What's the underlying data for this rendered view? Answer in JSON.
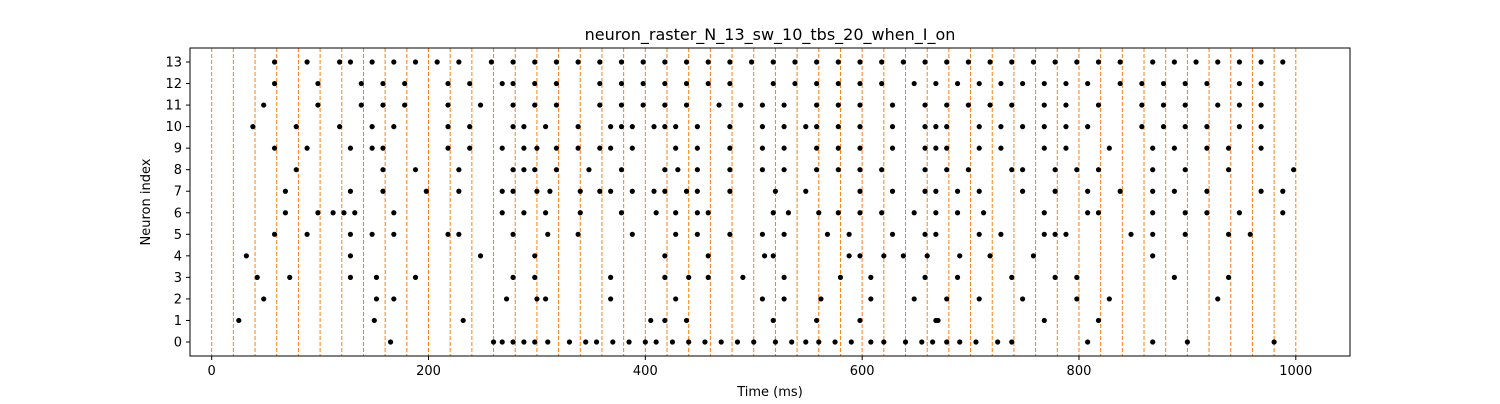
{
  "chart_data": {
    "type": "scatter",
    "title": "neuron_raster_N_13_sw_10_tbs_20_when_I_on",
    "xlabel": "Time (ms)",
    "ylabel": "Neuron index",
    "xlim": [
      -20,
      1050
    ],
    "ylim": [
      -0.65,
      13.65
    ],
    "x_ticks": [
      0,
      200,
      400,
      600,
      800,
      1000
    ],
    "x_tick_labels": [
      "0",
      "200",
      "400",
      "600",
      "800",
      "1000"
    ],
    "y_ticks": [
      0,
      1,
      2,
      3,
      4,
      5,
      6,
      7,
      8,
      9,
      10,
      11,
      12,
      13
    ],
    "y_tick_labels": [
      "0",
      "1",
      "2",
      "3",
      "4",
      "5",
      "6",
      "7",
      "8",
      "9",
      "10",
      "11",
      "12",
      "13"
    ],
    "grid": false,
    "time_bin_lines": {
      "x": [
        0,
        20,
        40,
        60,
        80,
        100,
        120,
        140,
        160,
        180,
        200,
        220,
        240,
        260,
        280,
        300,
        320,
        340,
        360,
        380,
        400,
        420,
        440,
        460,
        480,
        500,
        520,
        540,
        560,
        580,
        600,
        620,
        640,
        660,
        680,
        700,
        720,
        740,
        760,
        780,
        800,
        820,
        840,
        860,
        880,
        900,
        920,
        940,
        960,
        980,
        1000
      ],
      "color": "#ff7f0e",
      "style": "dashed"
    },
    "marker_color": "#000000",
    "spikes": [
      {
        "neuron": 0,
        "times": [
          165,
          260,
          268,
          278,
          288,
          298,
          310,
          330,
          345,
          355,
          370,
          385,
          400,
          410,
          425,
          440,
          455,
          470,
          485,
          500,
          520,
          535,
          548,
          560,
          575,
          590,
          608,
          620,
          640,
          655,
          665,
          678,
          690,
          705,
          725,
          738,
          808,
          868,
          900,
          980
        ]
      },
      {
        "neuron": 1,
        "times": [
          25,
          150,
          232,
          405,
          418,
          438,
          518,
          558,
          598,
          668,
          670,
          768,
          818
        ]
      },
      {
        "neuron": 2,
        "times": [
          48,
          152,
          168,
          272,
          300,
          308,
          368,
          428,
          508,
          528,
          562,
          608,
          648,
          678,
          708,
          748,
          798,
          828,
          928
        ]
      },
      {
        "neuron": 3,
        "times": [
          42,
          72,
          128,
          152,
          188,
          278,
          298,
          368,
          418,
          440,
          458,
          490,
          528,
          580,
          608,
          658,
          688,
          738,
          778,
          798,
          888,
          938
        ]
      },
      {
        "neuron": 4,
        "times": [
          32,
          128,
          248,
          298,
          418,
          458,
          510,
          518,
          588,
          598,
          620,
          638,
          660,
          690,
          718,
          758,
          868
        ]
      },
      {
        "neuron": 5,
        "times": [
          58,
          88,
          128,
          148,
          168,
          218,
          228,
          278,
          310,
          338,
          388,
          428,
          448,
          478,
          508,
          528,
          568,
          588,
          628,
          658,
          668,
          708,
          728,
          768,
          778,
          788,
          848,
          868,
          898,
          938,
          958
        ]
      },
      {
        "neuron": 6,
        "times": [
          68,
          98,
          112,
          122,
          132,
          168,
          268,
          288,
          308,
          340,
          378,
          410,
          428,
          448,
          458,
          518,
          532,
          560,
          578,
          598,
          618,
          648,
          668,
          688,
          712,
          768,
          808,
          818,
          868,
          898,
          918,
          948,
          988
        ]
      },
      {
        "neuron": 7,
        "times": [
          68,
          128,
          158,
          198,
          228,
          268,
          278,
          300,
          312,
          340,
          358,
          368,
          388,
          408,
          418,
          438,
          448,
          478,
          520,
          548,
          598,
          628,
          658,
          668,
          688,
          708,
          748,
          778,
          808,
          838,
          868,
          888,
          918,
          968,
          988
        ]
      },
      {
        "neuron": 8,
        "times": [
          78,
          158,
          188,
          228,
          278,
          288,
          298,
          318,
          348,
          378,
          418,
          430,
          448,
          478,
          508,
          528,
          558,
          578,
          598,
          618,
          658,
          678,
          698,
          738,
          748,
          778,
          798,
          818,
          868,
          898,
          938,
          998
        ]
      },
      {
        "neuron": 9,
        "times": [
          58,
          88,
          128,
          148,
          158,
          218,
          238,
          268,
          288,
          300,
          318,
          338,
          358,
          368,
          388,
          428,
          448,
          478,
          508,
          528,
          558,
          578,
          598,
          628,
          658,
          668,
          678,
          708,
          728,
          768,
          788,
          828,
          868,
          888,
          918,
          938,
          968
        ]
      },
      {
        "neuron": 10,
        "times": [
          38,
          78,
          118,
          148,
          168,
          218,
          238,
          278,
          288,
          308,
          338,
          368,
          378,
          388,
          408,
          418,
          428,
          448,
          478,
          508,
          528,
          548,
          558,
          578,
          598,
          628,
          658,
          668,
          678,
          708,
          728,
          748,
          768,
          788,
          808,
          858,
          878,
          898,
          918,
          948,
          968
        ]
      },
      {
        "neuron": 11,
        "times": [
          48,
          98,
          138,
          158,
          178,
          218,
          248,
          278,
          298,
          318,
          358,
          378,
          398,
          418,
          438,
          468,
          488,
          508,
          528,
          558,
          578,
          598,
          628,
          658,
          678,
          698,
          718,
          738,
          768,
          788,
          818,
          858,
          878,
          898,
          928,
          948,
          968
        ]
      },
      {
        "neuron": 12,
        "times": [
          58,
          98,
          138,
          158,
          178,
          218,
          238,
          268,
          278,
          298,
          318,
          358,
          378,
          398,
          418,
          438,
          458,
          478,
          518,
          538,
          558,
          578,
          598,
          618,
          648,
          668,
          688,
          708,
          728,
          748,
          768,
          788,
          808,
          838,
          858,
          878,
          898,
          918,
          948,
          968
        ]
      },
      {
        "neuron": 13,
        "times": [
          58,
          88,
          118,
          128,
          148,
          168,
          188,
          208,
          228,
          258,
          278,
          298,
          318,
          338,
          358,
          378,
          398,
          418,
          438,
          458,
          478,
          498,
          518,
          538,
          558,
          578,
          598,
          618,
          638,
          658,
          678,
          698,
          718,
          738,
          758,
          778,
          798,
          818,
          838,
          868,
          888,
          908,
          928,
          948,
          968,
          988
        ]
      }
    ]
  }
}
